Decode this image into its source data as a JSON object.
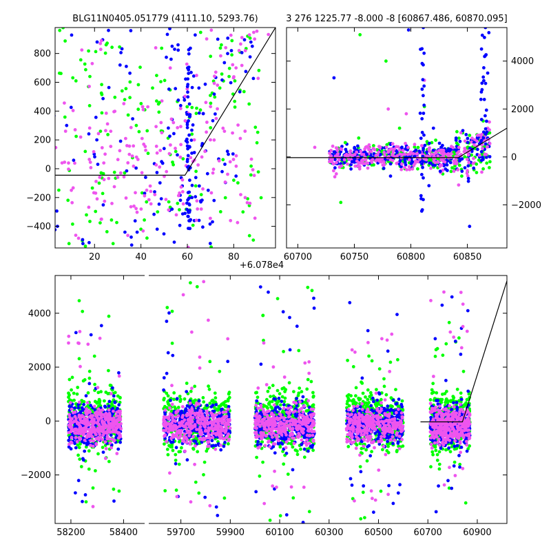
{
  "chart_data": [
    {
      "type": "scatter",
      "panel": "top-left",
      "title": "BLG11N0405.051779 (4111.10, 5293.76)",
      "xlabel": "",
      "ylabel": "",
      "x_offset_label": "+6.078e4",
      "xlim": [
        3,
        98
      ],
      "ylim": [
        -550,
        980
      ],
      "xticks": [
        20,
        40,
        60,
        80
      ],
      "yticks": [
        -400,
        -200,
        0,
        200,
        400,
        600,
        800
      ],
      "ytick_side": "left",
      "series": [
        {
          "name": "green",
          "color": "#00ff00",
          "points": [
            [
              5,
              960
            ],
            [
              12,
              610
            ],
            [
              18,
              640
            ],
            [
              25,
              860
            ],
            [
              33,
              480
            ],
            [
              45,
              560
            ],
            [
              55,
              120
            ],
            [
              62,
              240
            ],
            [
              66,
              -180
            ],
            [
              70,
              780
            ],
            [
              74,
              560
            ],
            [
              80,
              -80
            ],
            [
              86,
              920
            ],
            [
              90,
              180
            ],
            [
              9,
              -520
            ],
            [
              28,
              -520
            ],
            [
              40,
              -420
            ],
            [
              16,
              120
            ],
            [
              38,
              300
            ],
            [
              52,
              -230
            ],
            [
              64,
              420
            ],
            [
              78,
              640
            ],
            [
              84,
              -300
            ],
            [
              48,
              460
            ],
            [
              22,
              -100
            ]
          ]
        },
        {
          "name": "blue",
          "color": "#0000ff",
          "points": [
            [
              4,
              -400
            ],
            [
              8,
              300
            ],
            [
              15,
              -520
            ],
            [
              21,
              200
            ],
            [
              31,
              720
            ],
            [
              36,
              -530
            ],
            [
              42,
              -60
            ],
            [
              50,
              140
            ],
            [
              56,
              860
            ],
            [
              59,
              -310
            ],
            [
              60,
              50
            ],
            [
              61,
              -80
            ],
            [
              61,
              150
            ],
            [
              62,
              -200
            ],
            [
              60,
              320
            ],
            [
              63,
              -360
            ],
            [
              65,
              560
            ],
            [
              69,
              -150
            ],
            [
              72,
              380
            ],
            [
              75,
              -20
            ],
            [
              79,
              820
            ],
            [
              88,
              850
            ],
            [
              26,
              960
            ],
            [
              47,
              -420
            ],
            [
              53,
              760
            ]
          ]
        },
        {
          "name": "magenta",
          "color": "#ee55ee",
          "points": [
            [
              6,
              40
            ],
            [
              10,
              -150
            ],
            [
              14,
              220
            ],
            [
              19,
              730
            ],
            [
              23,
              -350
            ],
            [
              27,
              260
            ],
            [
              30,
              -60
            ],
            [
              34,
              160
            ],
            [
              37,
              -260
            ],
            [
              41,
              410
            ],
            [
              44,
              -120
            ],
            [
              49,
              250
            ],
            [
              51,
              -20
            ],
            [
              54,
              320
            ],
            [
              58,
              -160
            ],
            [
              63,
              200
            ],
            [
              66,
              -280
            ],
            [
              68,
              460
            ],
            [
              71,
              -30
            ],
            [
              73,
              580
            ],
            [
              76,
              260
            ],
            [
              81,
              700
            ],
            [
              83,
              -180
            ],
            [
              85,
              820
            ],
            [
              87,
              -240
            ],
            [
              89,
              900
            ],
            [
              24,
              40
            ],
            [
              35,
              100
            ],
            [
              46,
              -180
            ],
            [
              57,
              80
            ]
          ]
        }
      ],
      "model_line": {
        "color": "#000000",
        "x": [
          3,
          59,
          98
        ],
        "y": [
          -45,
          -45,
          980
        ]
      }
    },
    {
      "type": "scatter",
      "panel": "top-right",
      "title": "3 276 1225.77 -8.000 -8 [60867.486, 60870.095]",
      "xlabel": "",
      "ylabel": "",
      "xlim": [
        60690,
        60885
      ],
      "ylim": [
        -3800,
        5400
      ],
      "xticks": [
        60700,
        60750,
        60800,
        60850
      ],
      "yticks": [
        -2000,
        0,
        2000,
        4000
      ],
      "ytick_side": "right",
      "series": [
        {
          "name": "green",
          "color": "#00ff00",
          "points": [
            [
              60738,
              -1900
            ],
            [
              60755,
              5100
            ],
            [
              60770,
              300
            ],
            [
              60778,
              4000
            ],
            [
              60790,
              1200
            ],
            [
              60806,
              -500
            ],
            [
              60822,
              700
            ],
            [
              60838,
              200
            ],
            [
              60845,
              -800
            ],
            [
              60852,
              900
            ],
            [
              60858,
              -300
            ],
            [
              60864,
              1500
            ],
            [
              60870,
              -200
            ],
            [
              60742,
              600
            ],
            [
              60812,
              2100
            ]
          ]
        },
        {
          "name": "blue",
          "color": "#0000ff",
          "points": [
            [
              60732,
              3300
            ],
            [
              60748,
              -200
            ],
            [
              60761,
              100
            ],
            [
              60782,
              -800
            ],
            [
              60798,
              5300
            ],
            [
              60810,
              3900
            ],
            [
              60811,
              5400
            ],
            [
              60816,
              -1200
            ],
            [
              60826,
              -600
            ],
            [
              60834,
              300
            ],
            [
              60840,
              700
            ],
            [
              60846,
              1100
            ],
            [
              60851,
              -900
            ],
            [
              60856,
              600
            ],
            [
              60862,
              2400
            ],
            [
              60866,
              5400
            ],
            [
              60868,
              3500
            ],
            [
              60808,
              200
            ],
            [
              60790,
              -300
            ],
            [
              60820,
              1200
            ],
            [
              60852,
              -2900
            ]
          ]
        },
        {
          "name": "magenta",
          "color": "#ee55ee",
          "points": [
            [
              60715,
              400
            ],
            [
              60728,
              -200
            ],
            [
              60735,
              100
            ],
            [
              60744,
              -300
            ],
            [
              60752,
              200
            ],
            [
              60760,
              -100
            ],
            [
              60768,
              300
            ],
            [
              60776,
              -200
            ],
            [
              60784,
              100
            ],
            [
              60792,
              -300
            ],
            [
              60800,
              200
            ],
            [
              60808,
              -100
            ],
            [
              60816,
              300
            ],
            [
              60824,
              -200
            ],
            [
              60832,
              100
            ],
            [
              60840,
              -100
            ],
            [
              60848,
              300
            ],
            [
              60856,
              500
            ],
            [
              60862,
              900
            ],
            [
              60868,
              1200
            ],
            [
              60812,
              3200
            ],
            [
              60796,
              1800
            ],
            [
              60780,
              2000
            ]
          ]
        }
      ],
      "model_line": {
        "color": "#000000",
        "x": [
          60690,
          60842,
          60885
        ],
        "y": [
          -30,
          -30,
          1200
        ]
      }
    },
    {
      "type": "scatter",
      "panel": "bottom",
      "title": "",
      "xlabel": "",
      "ylabel": "",
      "broken_axis": true,
      "left_segment": {
        "xlim": [
          58140,
          58480
        ],
        "xticks": [
          58200,
          58400
        ]
      },
      "right_segment": {
        "xlim": [
          59570,
          61020
        ],
        "xticks": [
          59700,
          59900,
          60100,
          60300,
          60500,
          60700,
          60900
        ]
      },
      "ylim": [
        -3800,
        5400
      ],
      "yticks": [
        -2000,
        0,
        2000,
        4000
      ],
      "ytick_side": "left",
      "seasons": [
        {
          "x_start": 58190,
          "x_end": 58390,
          "green_top": 4900,
          "blue_top": 4100,
          "magenta_top": 3500,
          "bottom": -3300
        },
        {
          "x_start": 59630,
          "x_end": 59900,
          "green_top": 5200,
          "blue_top": 4300,
          "magenta_top": 5400,
          "bottom": -3600
        },
        {
          "x_start": 60000,
          "x_end": 60240,
          "green_top": 5000,
          "blue_top": 5400,
          "magenta_top": 3700,
          "bottom": -3800
        },
        {
          "x_start": 60370,
          "x_end": 60600,
          "green_top": 2900,
          "blue_top": 5200,
          "magenta_top": 4200,
          "bottom": -3800
        },
        {
          "x_start": 60710,
          "x_end": 60870,
          "green_top": 5000,
          "blue_top": 5300,
          "magenta_top": 5000,
          "bottom": -3500
        }
      ],
      "model_line": {
        "color": "#000000",
        "x": [
          60670,
          60840,
          61020
        ],
        "y": [
          -30,
          -30,
          5200
        ]
      }
    }
  ]
}
